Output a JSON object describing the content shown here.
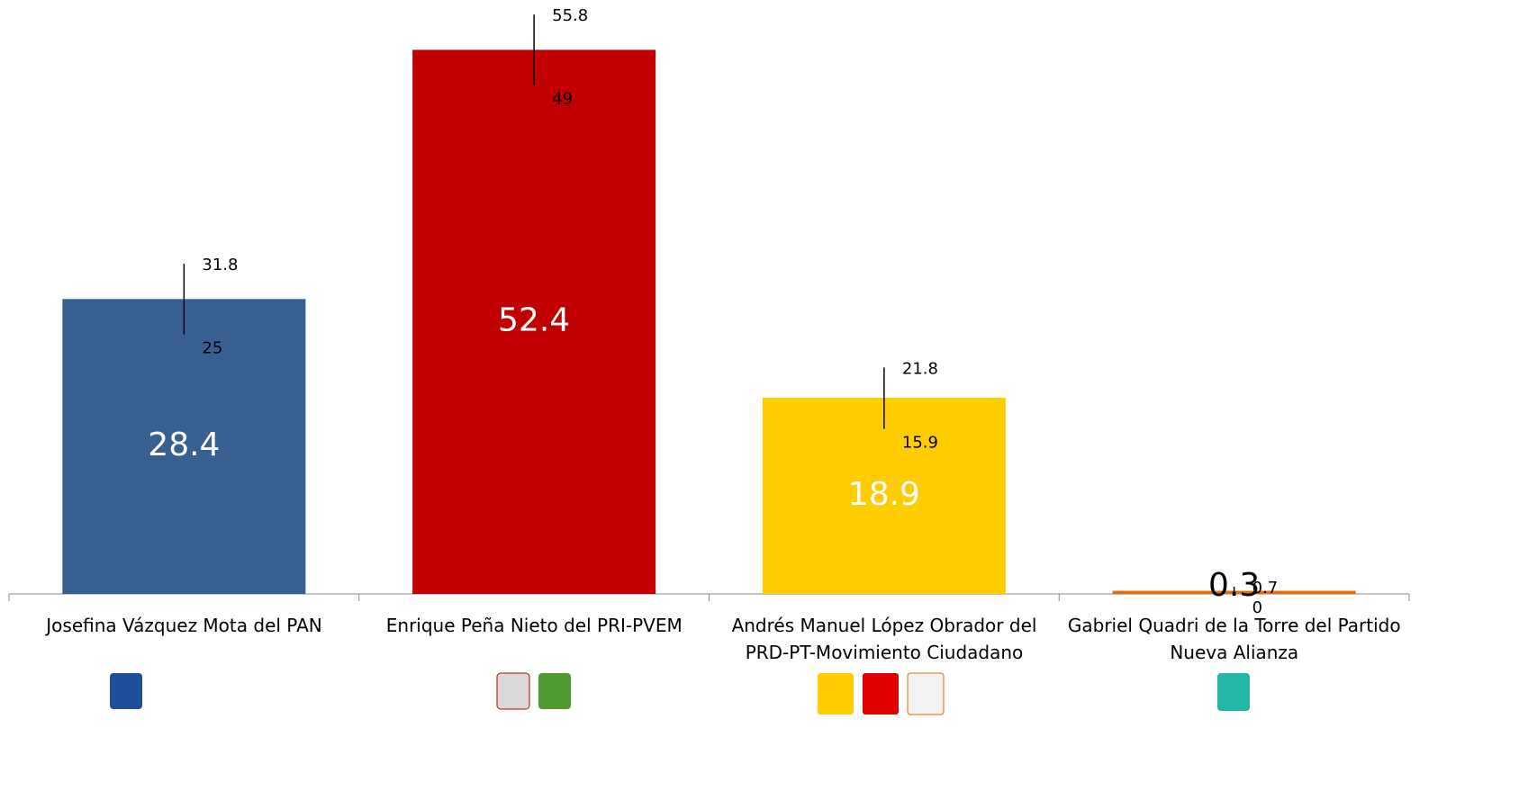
{
  "chart_data": {
    "type": "bar",
    "categories": [
      "Josefina Vázquez Mota del PAN",
      "Enrique Peña Nieto del PRI-PVEM",
      "Andrés Manuel López Obrador del PRD-PT-Movimiento Ciudadano",
      "Gabriel Quadri de la Torre del Partido Nueva Alianza"
    ],
    "values": [
      28.4,
      52.4,
      18.9,
      0.3
    ],
    "low": [
      25,
      49,
      15.9,
      0
    ],
    "high": [
      31.8,
      55.8,
      21.8,
      0.7
    ],
    "colors": [
      "#376091",
      "#c00000",
      "#ffcc00",
      "#e46c0a"
    ],
    "value_label_colors": [
      "#ffffff",
      "#ffffff",
      "#ffffff",
      "#000000"
    ],
    "ylim": [
      0,
      57.2
    ]
  }
}
